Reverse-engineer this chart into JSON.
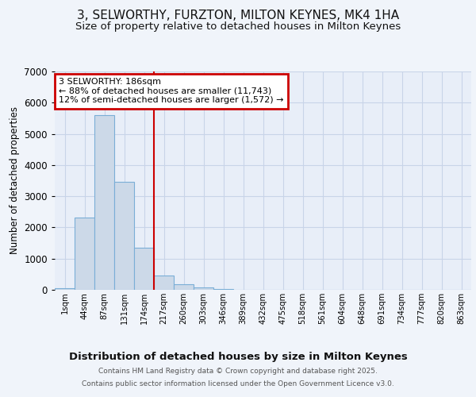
{
  "title_line1": "3, SELWORTHY, FURZTON, MILTON KEYNES, MK4 1HA",
  "title_line2": "Size of property relative to detached houses in Milton Keynes",
  "xlabel": "Distribution of detached houses by size in Milton Keynes",
  "ylabel": "Number of detached properties",
  "bar_labels": [
    "1sqm",
    "44sqm",
    "87sqm",
    "131sqm",
    "174sqm",
    "217sqm",
    "260sqm",
    "303sqm",
    "346sqm",
    "389sqm",
    "432sqm",
    "475sqm",
    "518sqm",
    "561sqm",
    "604sqm",
    "648sqm",
    "691sqm",
    "734sqm",
    "777sqm",
    "820sqm",
    "863sqm"
  ],
  "bar_heights": [
    50,
    2320,
    5600,
    3450,
    1350,
    450,
    175,
    75,
    25,
    10,
    3,
    1,
    0,
    0,
    0,
    0,
    0,
    0,
    0,
    0,
    0
  ],
  "bar_color": "#ccd9e8",
  "bar_edge_color": "#7aaed6",
  "vline_x": 4.5,
  "vline_color": "#cc0000",
  "annotation_title": "3 SELWORTHY: 186sqm",
  "annotation_line2": "← 88% of detached houses are smaller (11,743)",
  "annotation_line3": "12% of semi-detached houses are larger (1,572) →",
  "annotation_box_color": "#ffffff",
  "annotation_box_edge": "#cc0000",
  "ylim": [
    0,
    7000
  ],
  "yticks": [
    0,
    1000,
    2000,
    3000,
    4000,
    5000,
    6000,
    7000
  ],
  "footer_line1": "Contains HM Land Registry data © Crown copyright and database right 2025.",
  "footer_line2": "Contains public sector information licensed under the Open Government Licence v3.0.",
  "background_color": "#f0f4fa",
  "plot_bg_color": "#e8eef8",
  "grid_color": "#c8d4e8",
  "title_fontsize": 11,
  "subtitle_fontsize": 9.5
}
